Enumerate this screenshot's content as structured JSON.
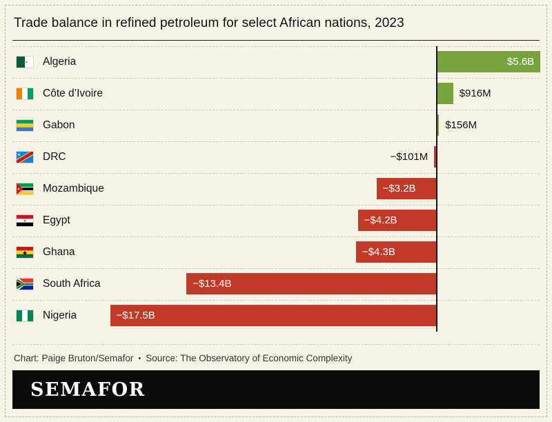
{
  "title": "Trade balance in refined petroleum for select African nations, 2023",
  "colors": {
    "positive": "#77a33f",
    "negative": "#c13a28",
    "background": "#f8f3e7",
    "zero_line": "#161616"
  },
  "chart_data": {
    "type": "bar",
    "orientation": "horizontal",
    "unit": "USD billions",
    "title": "Trade balance in refined petroleum for select African nations, 2023",
    "xlim": [
      -17.5,
      5.6
    ],
    "zero_line": true,
    "grid": "dashed row separators",
    "rows": [
      {
        "country": "Algeria",
        "flag": "algeria-flag",
        "value_billion_usd": 5.6,
        "label": "$5.6B"
      },
      {
        "country": "Côte d’Ivoire",
        "flag": "cote-divoire-flag",
        "value_billion_usd": 0.916,
        "label": "$916M"
      },
      {
        "country": "Gabon",
        "flag": "gabon-flag",
        "value_billion_usd": 0.156,
        "label": "$156M"
      },
      {
        "country": "DRC",
        "flag": "drc-flag",
        "value_billion_usd": -0.101,
        "label": "−$101M"
      },
      {
        "country": "Mozambique",
        "flag": "mozambique-flag",
        "value_billion_usd": -3.2,
        "label": "−$3.2B"
      },
      {
        "country": "Egypt",
        "flag": "egypt-flag",
        "value_billion_usd": -4.2,
        "label": "−$4.2B"
      },
      {
        "country": "Ghana",
        "flag": "ghana-flag",
        "value_billion_usd": -4.3,
        "label": "−$4.3B"
      },
      {
        "country": "South Africa",
        "flag": "south-africa-flag",
        "value_billion_usd": -13.4,
        "label": "−$13.4B"
      },
      {
        "country": "Nigeria",
        "flag": "nigeria-flag",
        "value_billion_usd": -17.5,
        "label": "−$17.5B"
      }
    ]
  },
  "footer": {
    "credit": "Chart: Paige Bruton/Semafor",
    "separator": "•",
    "source": "Source: The Observatory of Economic Complexity"
  },
  "logo": "SEMAFOR"
}
